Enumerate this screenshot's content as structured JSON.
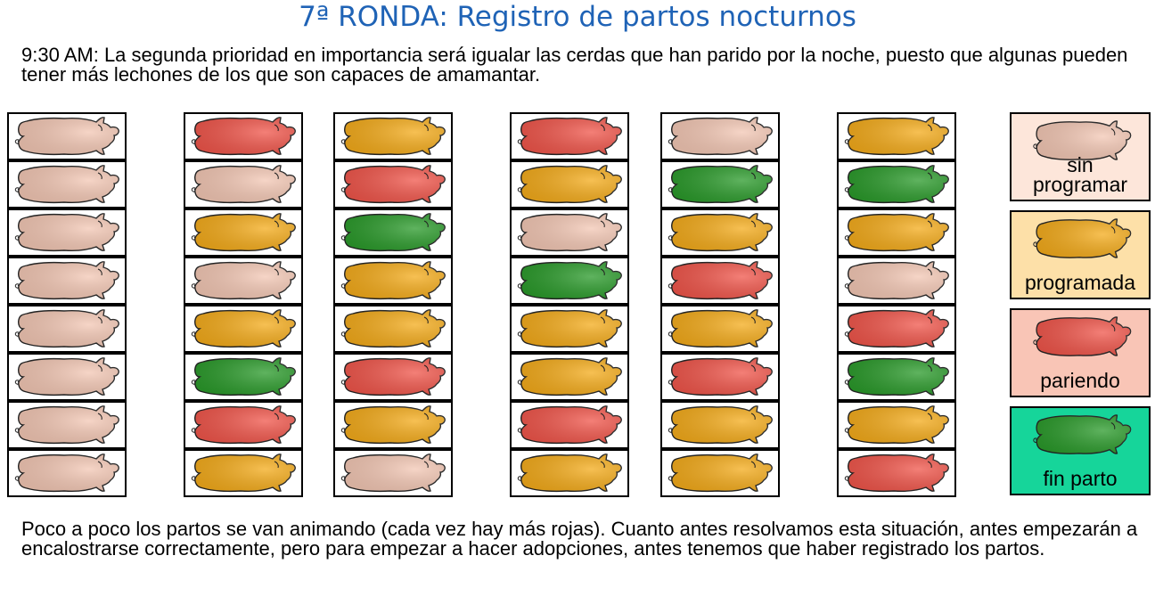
{
  "title": "7ª RONDA: Registro de partos nocturnos",
  "intro": "9:30 AM: La segunda prioridad en importancia será igualar las cerdas que han parido por la noche, puesto que algunas pueden tener más lechones de los que son capaces de amamantar.",
  "outro": "Poco a poco los partos se van animando (cada vez hay más rojas). Cuanto antes resolvamos esta situación, antes empezarán a encalostrarse correctamente, pero para empezar a hacer adopciones, antes tenemos que haber registrado los partos.",
  "colors": {
    "sin_programar": "#f3c7b4",
    "programada": "#f4ab1a",
    "pariendo": "#f0554a",
    "fin_parto": "#2a9a2a"
  },
  "legend": [
    {
      "status": "sin_programar",
      "label": "sin programar",
      "bg": "#fde6da"
    },
    {
      "status": "programada",
      "label": "programada",
      "bg": "#fde0a8"
    },
    {
      "status": "pariendo",
      "label": "pariendo",
      "bg": "#f9c5b6"
    },
    {
      "status": "fin_parto",
      "label": "fin parto",
      "bg": "#16d59a"
    }
  ],
  "boards": [
    {
      "left": [
        "sin_programar",
        "sin_programar",
        "sin_programar",
        "sin_programar",
        "sin_programar",
        "sin_programar",
        "sin_programar",
        "sin_programar"
      ],
      "right": [
        "pariendo",
        "sin_programar",
        "programada",
        "sin_programar",
        "programada",
        "fin_parto",
        "pariendo",
        "programada"
      ]
    },
    {
      "left": [
        "programada",
        "pariendo",
        "fin_parto",
        "programada",
        "programada",
        "pariendo",
        "programada",
        "sin_programar"
      ],
      "right": [
        "pariendo",
        "programada",
        "sin_programar",
        "fin_parto",
        "programada",
        "programada",
        "pariendo",
        "programada"
      ]
    },
    {
      "left": [
        "sin_programar",
        "fin_parto",
        "programada",
        "pariendo",
        "programada",
        "pariendo",
        "programada",
        "programada"
      ],
      "right": [
        "programada",
        "fin_parto",
        "programada",
        "sin_programar",
        "pariendo",
        "fin_parto",
        "programada",
        "pariendo"
      ]
    }
  ]
}
